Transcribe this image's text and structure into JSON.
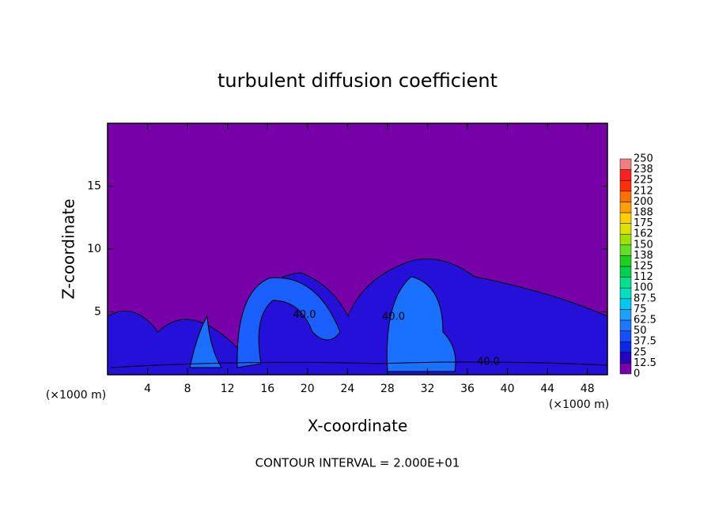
{
  "chart_data": {
    "type": "contour",
    "title": "turbulent diffusion coefficient",
    "x_label": "X-coordinate",
    "y_label": "Z-coordinate",
    "x_unit": "(×1000 m)",
    "y_unit": "(×1000 m)",
    "footer": "CONTOUR INTERVAL = 2.000E+01",
    "xlim": [
      0,
      50
    ],
    "ylim": [
      0,
      20
    ],
    "xticks": [
      4,
      8,
      12,
      16,
      20,
      24,
      28,
      32,
      36,
      40,
      44,
      48
    ],
    "yticks": [
      5,
      10,
      15
    ],
    "background_color": "#7800a8",
    "contour_labels": [
      {
        "text": "40.0",
        "x": 19.7,
        "z": 4.75
      },
      {
        "text": "40.0",
        "x": 28.6,
        "z": 4.6
      },
      {
        "text": "40.0",
        "x": 38.1,
        "z": 1.0
      }
    ],
    "colorbar": {
      "ticks": [
        0,
        12.5,
        25,
        37.5,
        50,
        62.5,
        75,
        87.5,
        100,
        {
          "value": 112.5,
          "label": "112"
        },
        125,
        {
          "value": 137.5,
          "label": "138"
        },
        150,
        {
          "value": 162.5,
          "label": "162"
        },
        175,
        {
          "value": 187.5,
          "label": "188"
        },
        200,
        {
          "value": 212.5,
          "label": "212"
        },
        225,
        {
          "value": 237.5,
          "label": "238"
        },
        250
      ],
      "colors": [
        "#7800a8",
        "#2800c0",
        "#0a28e8",
        "#1450ff",
        "#1e78ff",
        "#1ea0ff",
        "#00c8f0",
        "#00e0c0",
        "#00e090",
        "#00d050",
        "#20d020",
        "#60e020",
        "#a0e000",
        "#e0e000",
        "#ffd000",
        "#ffa000",
        "#ff7000",
        "#ff3000",
        "#ff2020",
        "#f08080"
      ]
    }
  }
}
